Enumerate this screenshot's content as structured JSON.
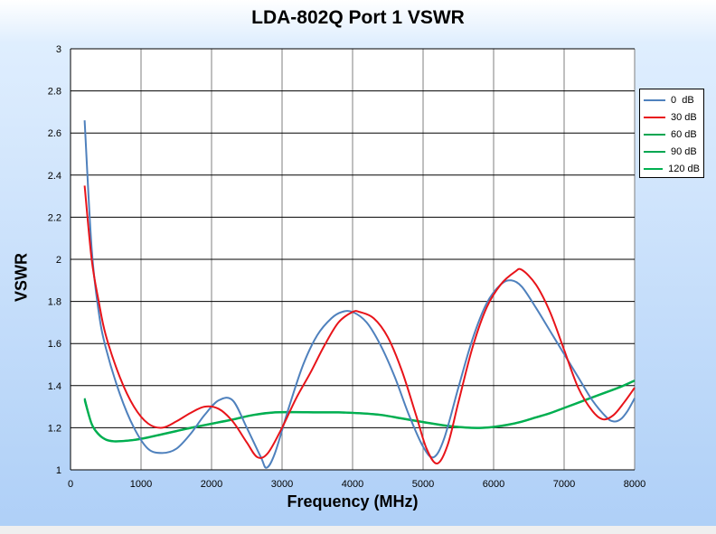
{
  "chart_data": {
    "type": "line",
    "title": "LDA-802Q Port 1 VSWR",
    "xlabel": "Frequency (MHz)",
    "ylabel": "VSWR",
    "xlim": [
      0,
      8000
    ],
    "ylim": [
      1,
      3
    ],
    "xticks": [
      0,
      1000,
      2000,
      3000,
      4000,
      5000,
      6000,
      7000,
      8000
    ],
    "yticks": [
      1,
      1.2,
      1.4,
      1.6,
      1.8,
      2,
      2.2,
      2.4,
      2.6,
      2.8,
      3
    ],
    "xtick_labels": [
      "0",
      "1000",
      "2000",
      "3000",
      "4000",
      "5000",
      "6000",
      "7000",
      "8000"
    ],
    "ytick_labels": [
      "1",
      "1.2",
      "1.4",
      "1.6",
      "1.8",
      "2",
      "2.2",
      "2.4",
      "2.6",
      "2.8",
      "3"
    ],
    "grid": true,
    "legend_position": "right",
    "series": [
      {
        "name": "0  dB",
        "color": "#4f81bd",
        "x": [
          200,
          300,
          400,
          500,
          700,
          900,
          1100,
          1300,
          1500,
          1700,
          1900,
          2100,
          2300,
          2500,
          2700,
          2780,
          2900,
          3100,
          3300,
          3500,
          3700,
          3850,
          4000,
          4200,
          4400,
          4600,
          4800,
          5000,
          5150,
          5300,
          5500,
          5700,
          5900,
          6100,
          6250,
          6400,
          6600,
          6800,
          7000,
          7200,
          7400,
          7600,
          7700,
          7800,
          7900,
          8000
        ],
        "y": [
          2.66,
          2.05,
          1.75,
          1.58,
          1.36,
          1.2,
          1.1,
          1.08,
          1.1,
          1.17,
          1.26,
          1.33,
          1.33,
          1.2,
          1.06,
          1.01,
          1.08,
          1.3,
          1.5,
          1.64,
          1.72,
          1.75,
          1.75,
          1.7,
          1.59,
          1.44,
          1.26,
          1.11,
          1.06,
          1.15,
          1.39,
          1.62,
          1.79,
          1.88,
          1.9,
          1.87,
          1.77,
          1.66,
          1.55,
          1.44,
          1.33,
          1.25,
          1.23,
          1.24,
          1.28,
          1.34
        ]
      },
      {
        "name": "30 dB",
        "color": "#e8141a",
        "x": [
          200,
          300,
          400,
          500,
          700,
          900,
          1100,
          1300,
          1500,
          1700,
          1900,
          2100,
          2300,
          2500,
          2650,
          2800,
          3000,
          3200,
          3400,
          3600,
          3800,
          4000,
          4100,
          4300,
          4500,
          4700,
          4900,
          5050,
          5200,
          5350,
          5500,
          5700,
          5900,
          6100,
          6300,
          6400,
          6600,
          6800,
          7000,
          7200,
          7400,
          7550,
          7700,
          7850,
          8000
        ],
        "y": [
          2.35,
          2.0,
          1.8,
          1.64,
          1.44,
          1.3,
          1.22,
          1.2,
          1.23,
          1.27,
          1.3,
          1.29,
          1.23,
          1.13,
          1.06,
          1.08,
          1.2,
          1.34,
          1.46,
          1.59,
          1.7,
          1.75,
          1.75,
          1.72,
          1.63,
          1.47,
          1.26,
          1.1,
          1.03,
          1.12,
          1.32,
          1.58,
          1.77,
          1.88,
          1.94,
          1.95,
          1.88,
          1.75,
          1.57,
          1.39,
          1.28,
          1.24,
          1.26,
          1.32,
          1.39
        ]
      },
      {
        "name": "60 dB",
        "color": "#00a651",
        "x": [
          200,
          300,
          400,
          500,
          600,
          700,
          900,
          1100,
          1300,
          1500,
          1700,
          2000,
          2300,
          2600,
          2900,
          3200,
          3500,
          3800,
          4100,
          4400,
          4700,
          5000,
          5300,
          5600,
          5800,
          6000,
          6200,
          6400,
          6600,
          6800,
          7000,
          7200,
          7400,
          7600,
          7800,
          8000
        ],
        "y": [
          1.34,
          1.22,
          1.17,
          1.145,
          1.137,
          1.137,
          1.143,
          1.155,
          1.17,
          1.185,
          1.2,
          1.22,
          1.24,
          1.262,
          1.274,
          1.275,
          1.274,
          1.274,
          1.27,
          1.262,
          1.245,
          1.228,
          1.212,
          1.202,
          1.2,
          1.205,
          1.215,
          1.23,
          1.25,
          1.27,
          1.295,
          1.32,
          1.345,
          1.37,
          1.395,
          1.425
        ]
      },
      {
        "name": "90 dB",
        "color": "#00a651",
        "x": [
          200,
          300,
          400,
          500,
          600,
          700,
          900,
          1100,
          1300,
          1500,
          1700,
          2000,
          2300,
          2600,
          2900,
          3200,
          3500,
          3800,
          4100,
          4400,
          4700,
          5000,
          5300,
          5600,
          5800,
          6000,
          6200,
          6400,
          6600,
          6800,
          7000,
          7200,
          7400,
          7600,
          7800,
          8000
        ],
        "y": [
          1.335,
          1.218,
          1.168,
          1.144,
          1.136,
          1.136,
          1.142,
          1.154,
          1.169,
          1.184,
          1.199,
          1.219,
          1.239,
          1.261,
          1.273,
          1.274,
          1.273,
          1.273,
          1.269,
          1.261,
          1.244,
          1.227,
          1.211,
          1.201,
          1.199,
          1.204,
          1.214,
          1.229,
          1.249,
          1.269,
          1.294,
          1.319,
          1.344,
          1.369,
          1.394,
          1.424
        ]
      },
      {
        "name": "120 dB",
        "color": "#00b050",
        "x": [
          200,
          300,
          400,
          500,
          600,
          700,
          900,
          1100,
          1300,
          1500,
          1700,
          2000,
          2300,
          2600,
          2900,
          3200,
          3500,
          3800,
          4100,
          4400,
          4700,
          5000,
          5300,
          5600,
          5800,
          6000,
          6200,
          6400,
          6600,
          6800,
          7000,
          7200,
          7400,
          7600,
          7800,
          8000
        ],
        "y": [
          1.33,
          1.216,
          1.167,
          1.143,
          1.135,
          1.135,
          1.141,
          1.153,
          1.168,
          1.183,
          1.198,
          1.218,
          1.238,
          1.26,
          1.272,
          1.273,
          1.272,
          1.272,
          1.268,
          1.26,
          1.243,
          1.226,
          1.21,
          1.2,
          1.198,
          1.203,
          1.213,
          1.228,
          1.248,
          1.268,
          1.293,
          1.318,
          1.343,
          1.368,
          1.393,
          1.423
        ]
      }
    ]
  },
  "style": {
    "plot_background": "#ffffff",
    "grid_color": "#000000",
    "legend_background": "#ffffff"
  }
}
